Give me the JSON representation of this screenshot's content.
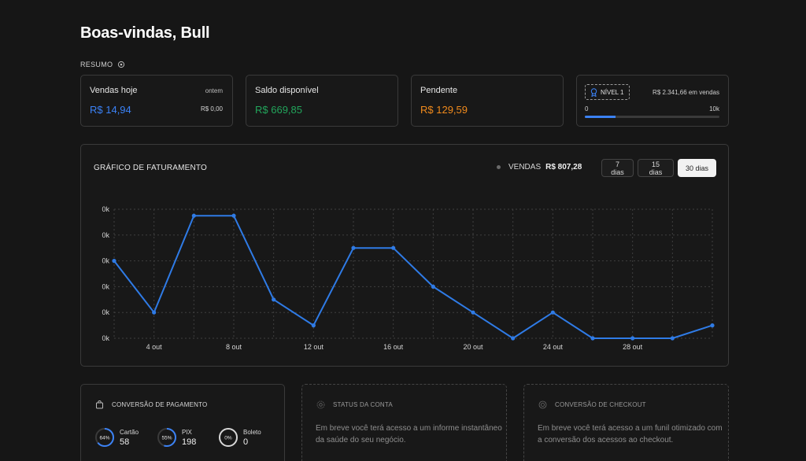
{
  "header": {
    "welcome": "Boas-vindas, Bull",
    "summary_label": "RESUMO"
  },
  "cards": {
    "today": {
      "label": "Vendas hoje",
      "value": "R$ 14,94",
      "side_label": "ontem",
      "side_value": "R$ 0,00"
    },
    "balance": {
      "label": "Saldo disponível",
      "value": "R$ 669,85"
    },
    "pending": {
      "label": "Pendente",
      "value": "R$ 129,59"
    },
    "level": {
      "badge": "NÍVEL 1",
      "sales": "R$ 2.341,66 em vendas",
      "min": "0",
      "max": "10k",
      "progress": 0.23
    }
  },
  "chart_card": {
    "title": "GRÁFICO DE FATURAMENTO",
    "legend_label": "VENDAS",
    "legend_amount": "R$ 807,28",
    "ranges": [
      "7 dias",
      "15 dias",
      "30 dias"
    ],
    "active_range": "30 dias"
  },
  "chart_data": {
    "type": "line",
    "y_tick_labels": [
      "0k",
      "0k",
      "0k",
      "0k",
      "0k",
      "0k"
    ],
    "x_tick_labels": [
      "4 out",
      "8 out",
      "12 out",
      "16 out",
      "20 out",
      "24 out",
      "28 out"
    ],
    "x": [
      2,
      4,
      6,
      8,
      10,
      12,
      14,
      16,
      18,
      20,
      22,
      24,
      26,
      28,
      30,
      32
    ],
    "values": [
      60,
      20,
      95,
      95,
      30,
      10,
      70,
      70,
      40,
      20,
      0,
      20,
      0,
      0,
      0,
      10
    ],
    "ylim": [
      0,
      100
    ],
    "xlim": [
      2,
      32
    ],
    "grid": true,
    "series_color": "#2f7be6"
  },
  "bottom": {
    "payment": {
      "title": "CONVERSÃO DE PAGAMENTO",
      "items": [
        {
          "pct": "64%",
          "pct_value": 64,
          "label": "Cartão",
          "value": "58"
        },
        {
          "pct": "55%",
          "pct_value": 55,
          "label": "PIX",
          "value": "198"
        },
        {
          "pct": "0%",
          "pct_value": 0,
          "label": "Boleto",
          "value": "0"
        }
      ]
    },
    "status": {
      "title": "STATUS DA CONTA",
      "text": "Em breve você terá acesso a um informe instantâneo da saúde do seu negócio."
    },
    "checkout": {
      "title": "CONVERSÃO DE CHECKOUT",
      "text": "Em breve você terá acesso a um funil otimizado com a conversão dos acessos ao checkout."
    }
  },
  "colors": {
    "accent": "#3b82f6",
    "green": "#22a55b",
    "orange": "#f08a1c",
    "background": "#161616"
  }
}
